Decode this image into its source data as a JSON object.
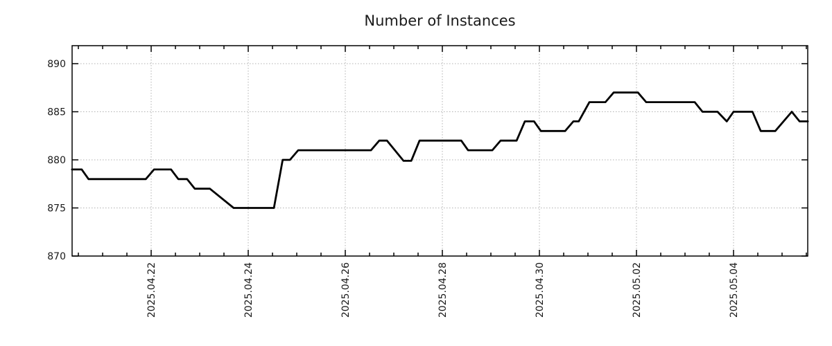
{
  "chart_data": {
    "type": "line",
    "title": "Number of Instances",
    "grid": true,
    "legend": null,
    "colors": {
      "line": "#000000",
      "grid": "#b0b0b0",
      "axis": "#000000",
      "text": "#1a1a1a",
      "background": "#ffffff"
    },
    "x_axis": {
      "positions_unit": "days since 2025.04.20 00:00",
      "tick_labels": [
        "2025.04.22",
        "2025.04.24",
        "2025.04.26",
        "2025.04.28",
        "2025.04.30",
        "2025.05.02",
        "2025.05.04"
      ],
      "tick_positions_days": [
        2,
        4,
        6,
        8,
        10,
        12,
        14
      ],
      "minor_tick_step_days": 0.5,
      "range_days": [
        0.371,
        15.529
      ]
    },
    "y_axis": {
      "tick_labels": [
        "870",
        "875",
        "880",
        "885",
        "890"
      ],
      "tick_values": [
        870,
        875,
        880,
        885,
        890
      ],
      "range": [
        870,
        891.87
      ]
    },
    "series": [
      {
        "name": "instances",
        "color": "#000000",
        "points": [
          [
            0.37,
            879
          ],
          [
            0.57,
            879
          ],
          [
            0.71,
            878
          ],
          [
            1.89,
            878
          ],
          [
            2.06,
            879
          ],
          [
            2.41,
            879
          ],
          [
            2.56,
            878
          ],
          [
            2.74,
            878
          ],
          [
            2.9,
            877
          ],
          [
            3.21,
            877
          ],
          [
            3.7,
            875
          ],
          [
            4.53,
            875
          ],
          [
            4.71,
            880
          ],
          [
            4.86,
            880
          ],
          [
            5.03,
            881
          ],
          [
            6.53,
            881
          ],
          [
            6.7,
            882
          ],
          [
            6.86,
            882
          ],
          [
            7.2,
            879.9
          ],
          [
            7.36,
            879.9
          ],
          [
            7.53,
            882
          ],
          [
            8.39,
            882
          ],
          [
            8.53,
            881
          ],
          [
            9.03,
            881
          ],
          [
            9.2,
            882
          ],
          [
            9.53,
            882
          ],
          [
            9.7,
            884
          ],
          [
            9.89,
            884
          ],
          [
            10.03,
            883
          ],
          [
            10.53,
            883
          ],
          [
            10.7,
            884
          ],
          [
            10.81,
            884
          ],
          [
            11.03,
            886
          ],
          [
            11.36,
            886
          ],
          [
            11.53,
            887
          ],
          [
            12.03,
            887
          ],
          [
            12.2,
            886
          ],
          [
            13.2,
            886
          ],
          [
            13.36,
            885
          ],
          [
            13.67,
            885
          ],
          [
            13.86,
            884
          ],
          [
            14.0,
            885
          ],
          [
            14.39,
            885
          ],
          [
            14.56,
            883
          ],
          [
            14.86,
            883
          ],
          [
            15.2,
            885
          ],
          [
            15.36,
            884
          ],
          [
            15.53,
            884
          ]
        ]
      }
    ]
  }
}
